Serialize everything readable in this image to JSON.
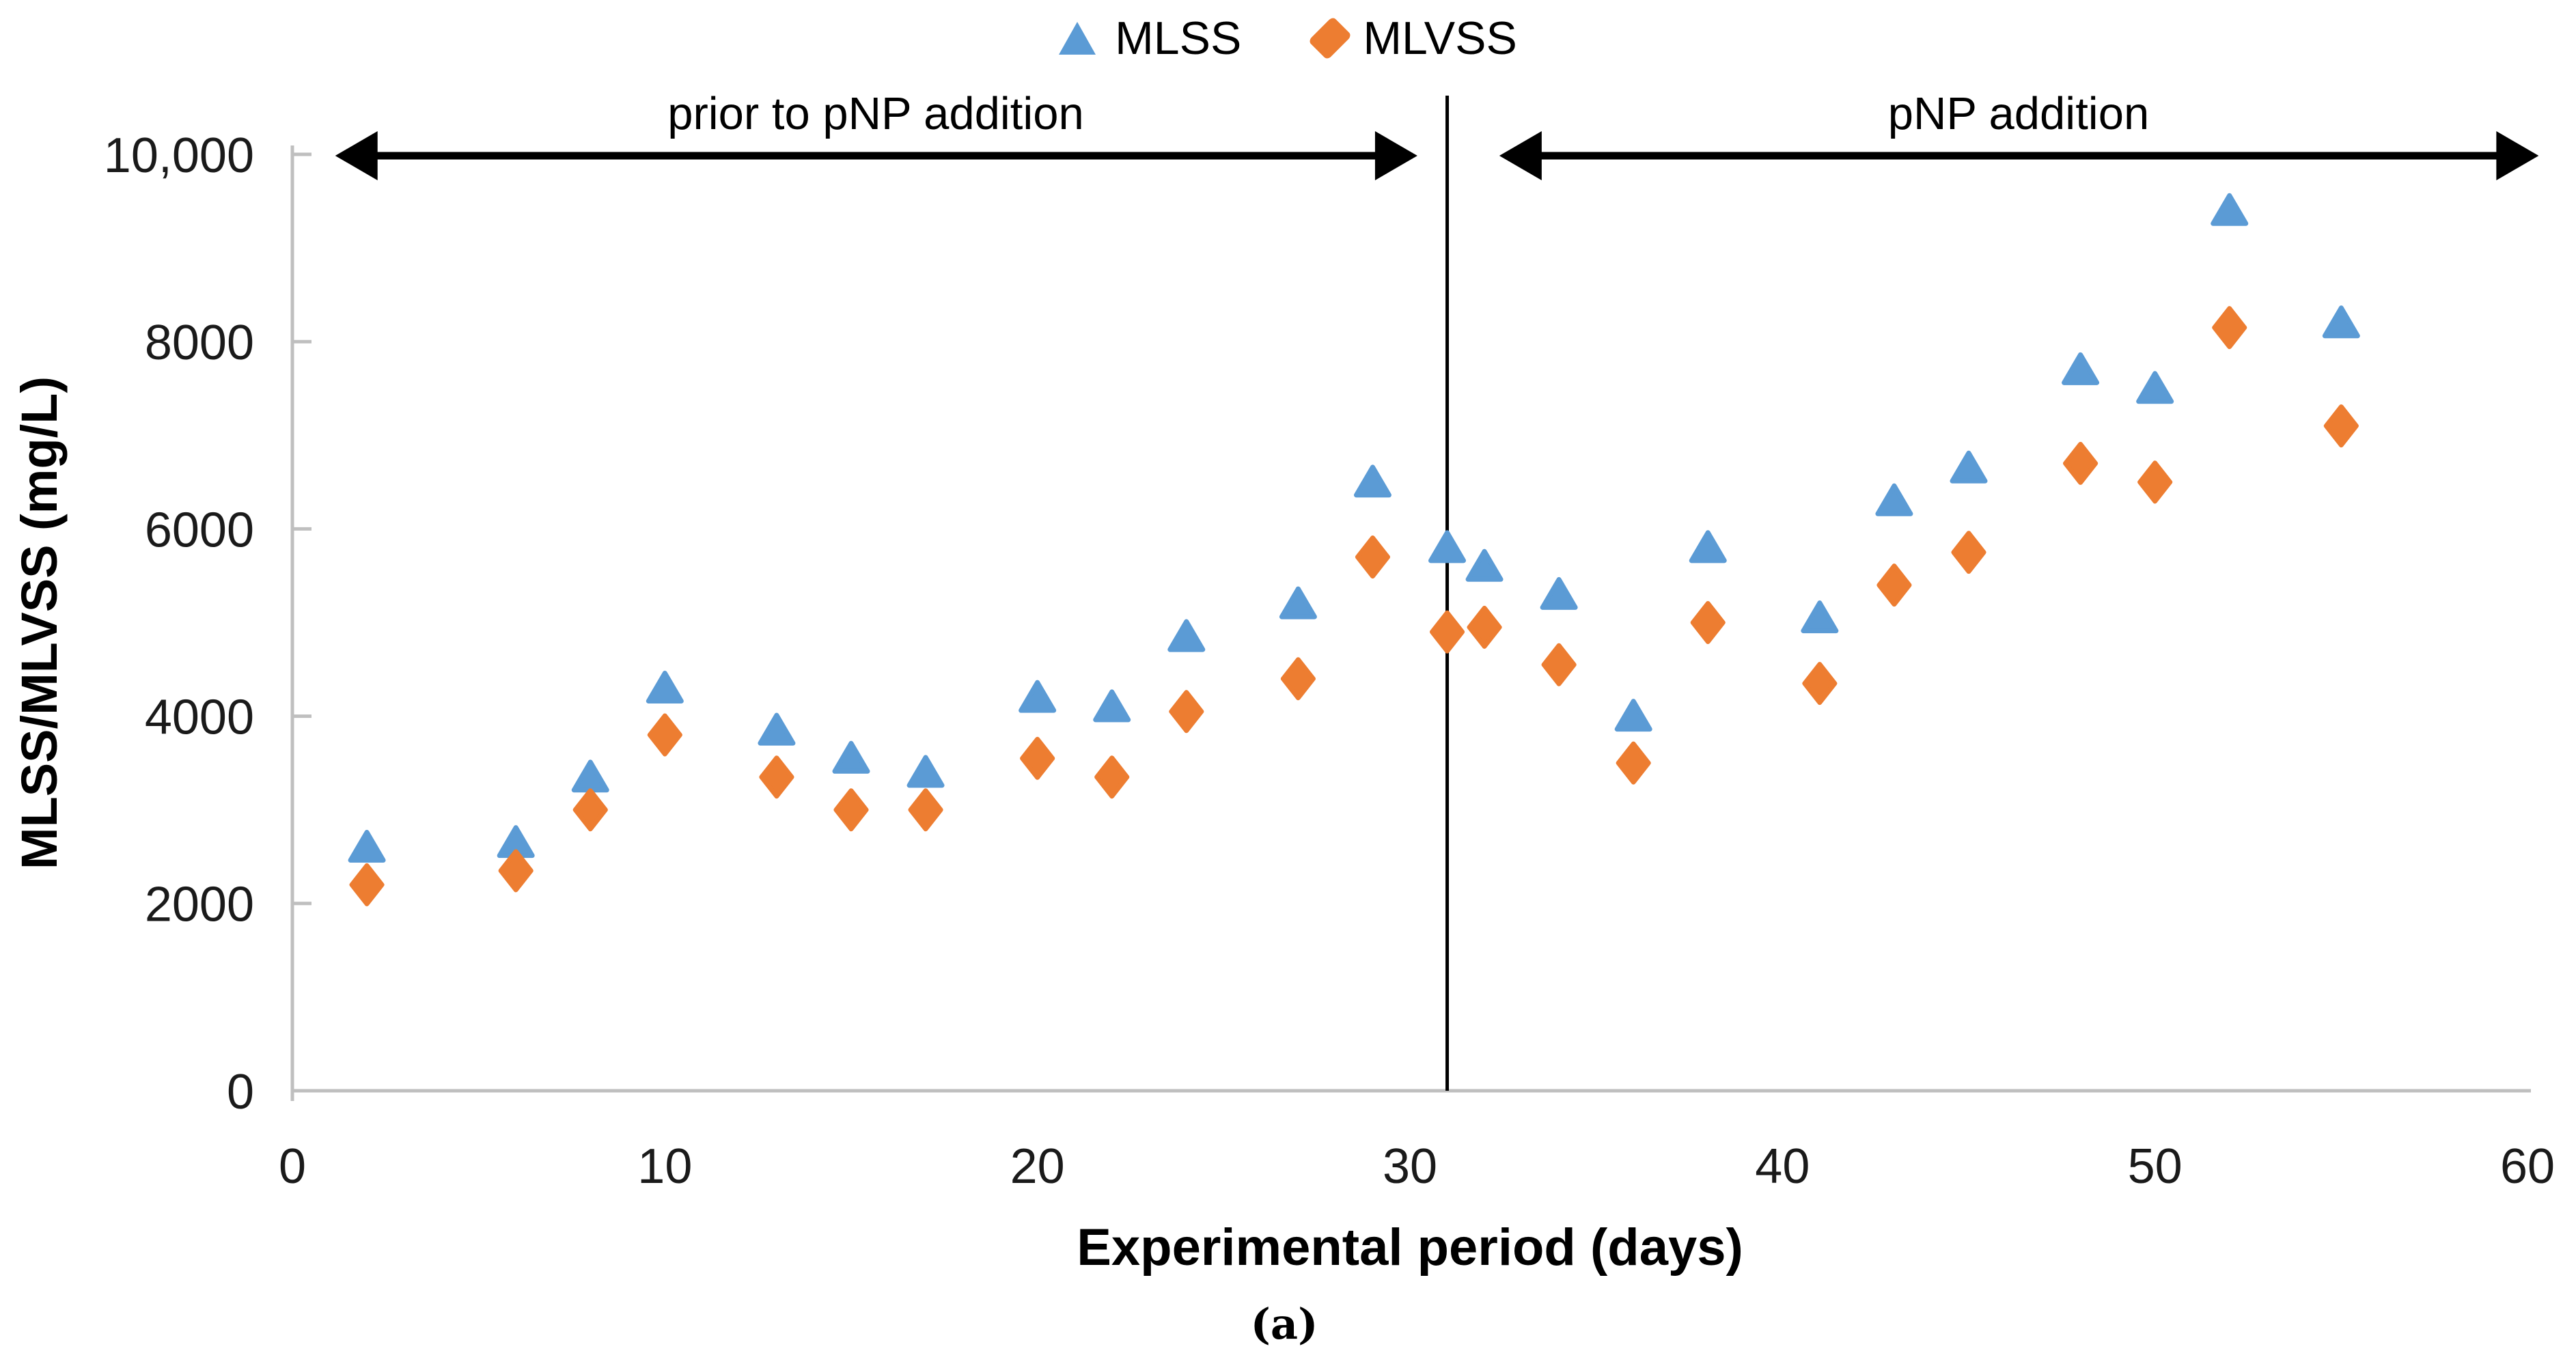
{
  "legend": {
    "items": [
      {
        "label": "MLSS",
        "marker": "triangle",
        "color": "#5B9BD5"
      },
      {
        "label": "MLVSS",
        "marker": "diamond",
        "color": "#ED7D31"
      }
    ]
  },
  "annotations": {
    "left_label": "prior to pNP addition",
    "right_label": "pNP addition"
  },
  "caption": "(a)",
  "colors": {
    "axis": "#BFBFBF",
    "tick_text": "#1a1a1a",
    "divider": "#000000",
    "arrow": "#000000",
    "mlss": "#5B9BD5",
    "mlvss": "#ED7D31"
  },
  "chart_data": {
    "type": "scatter",
    "title": "",
    "xlabel": "Experimental period (days)",
    "ylabel": "MLSS/MLVSS (mg/L)",
    "xlim": [
      0,
      60
    ],
    "ylim": [
      0,
      10000
    ],
    "x_ticks": [
      0,
      10,
      20,
      30,
      40,
      50,
      60
    ],
    "y_ticks": [
      0,
      2000,
      4000,
      6000,
      8000,
      10000
    ],
    "y_tick_labels": [
      "0",
      "2000",
      "4000",
      "6000",
      "8000",
      "10,000"
    ],
    "grid": false,
    "legend_position": "top-center",
    "divider_x": 31,
    "x": [
      2,
      6,
      8,
      10,
      13,
      15,
      17,
      20,
      22,
      24,
      27,
      29,
      31,
      32,
      34,
      36,
      38,
      41,
      43,
      45,
      48,
      50,
      52,
      55
    ],
    "series": [
      {
        "name": "MLSS",
        "marker": "triangle",
        "color": "#5B9BD5",
        "values": [
          2600,
          2650,
          3350,
          4300,
          3850,
          3550,
          3400,
          4200,
          4100,
          4850,
          5200,
          6500,
          5800,
          5600,
          5300,
          4000,
          5800,
          5050,
          6300,
          6650,
          7700,
          7500,
          9400,
          8200
        ]
      },
      {
        "name": "MLVSS",
        "marker": "diamond",
        "color": "#ED7D31",
        "values": [
          2200,
          2350,
          3000,
          3800,
          3350,
          3000,
          3000,
          3550,
          3350,
          4050,
          4400,
          5700,
          4900,
          4950,
          4550,
          3500,
          5000,
          4350,
          5400,
          5750,
          6700,
          6500,
          8150,
          7100
        ]
      }
    ],
    "arrow_ranges": {
      "left": {
        "x_start_day": 1.15,
        "x_end_day": 30.2
      },
      "right": {
        "x_start_day": 32.4,
        "x_end_day": 60.3
      }
    }
  }
}
